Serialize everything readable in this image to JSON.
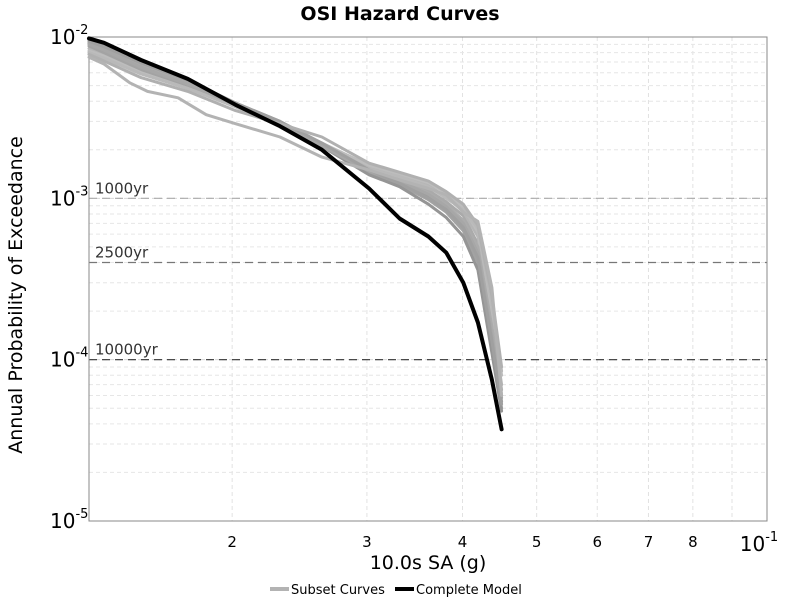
{
  "chart_data": {
    "type": "line",
    "title": "OSI Hazard Curves",
    "xlabel": "10.0s SA (g)",
    "ylabel": "Annual Probability of Exceedance",
    "x_scale": "log",
    "y_scale": "log",
    "xlim": [
      0.013,
      0.1
    ],
    "ylim": [
      1e-05,
      0.01
    ],
    "grid": true,
    "x_tick_labels": [
      {
        "value": 0.02,
        "label": "2"
      },
      {
        "value": 0.03,
        "label": "3"
      },
      {
        "value": 0.04,
        "label": "4"
      },
      {
        "value": 0.05,
        "label": "5"
      },
      {
        "value": 0.06,
        "label": "6"
      },
      {
        "value": 0.07,
        "label": "7"
      },
      {
        "value": 0.08,
        "label": "8"
      },
      {
        "value": 0.1,
        "label": "10",
        "superscript": "-1"
      }
    ],
    "y_tick_labels": [
      {
        "value": 0.01,
        "label": "10",
        "superscript": "-2"
      },
      {
        "value": 0.001,
        "label": "10",
        "superscript": "-3"
      },
      {
        "value": 0.0001,
        "label": "10",
        "superscript": "-4"
      },
      {
        "value": 1e-05,
        "label": "10",
        "superscript": "-5"
      }
    ],
    "reference_lines": [
      {
        "label": "1000yr",
        "y": 0.001,
        "color": "#aaaaaa"
      },
      {
        "label": "2500yr",
        "y": 0.0004,
        "color": "#777777"
      },
      {
        "label": "10000yr",
        "y": 0.0001,
        "color": "#333333"
      }
    ],
    "legend": {
      "placement": "bottom",
      "entries": [
        {
          "label": "Subset Curves",
          "color": "#b3b3b3"
        },
        {
          "label": "Complete Model",
          "color": "#000000"
        }
      ]
    },
    "series": [
      {
        "group": "Subset Curves",
        "color": "#aaaaaa",
        "x": [
          0.013,
          0.0136,
          0.0152,
          0.0175,
          0.0202,
          0.0231,
          0.0262,
          0.0302,
          0.0331,
          0.0361,
          0.0381,
          0.0401,
          0.0419,
          0.0437,
          0.045
        ],
        "y": [
          0.0092,
          0.0083,
          0.0065,
          0.0051,
          0.0038,
          0.0029,
          0.0021,
          0.0015,
          0.00132,
          0.00112,
          0.00095,
          0.00078,
          0.00052,
          0.00015,
          6e-05
        ]
      },
      {
        "group": "Subset Curves",
        "color": "#b5b5b5",
        "x": [
          0.013,
          0.0136,
          0.0152,
          0.0175,
          0.0202,
          0.0231,
          0.0262,
          0.0302,
          0.0331,
          0.0361,
          0.0381,
          0.0401,
          0.0419,
          0.0437,
          0.045
        ],
        "y": [
          0.0085,
          0.0078,
          0.0061,
          0.0049,
          0.0037,
          0.0029,
          0.0022,
          0.00155,
          0.00138,
          0.0012,
          0.00102,
          0.00083,
          0.00058,
          0.00018,
          7e-05
        ]
      },
      {
        "group": "Subset Curves",
        "color": "#9c9c9c",
        "x": [
          0.013,
          0.0136,
          0.0152,
          0.0175,
          0.0202,
          0.0231,
          0.0262,
          0.0302,
          0.0331,
          0.0361,
          0.0381,
          0.0401,
          0.0419,
          0.0437,
          0.045
        ],
        "y": [
          0.0095,
          0.0087,
          0.0069,
          0.0054,
          0.0039,
          0.003,
          0.00215,
          0.00148,
          0.00126,
          0.00104,
          0.00088,
          0.00069,
          0.00045,
          0.00013,
          5.5e-05
        ]
      },
      {
        "group": "Subset Curves",
        "color": "#a3a3a3",
        "x": [
          0.013,
          0.0136,
          0.0152,
          0.0175,
          0.0202,
          0.0231,
          0.0262,
          0.0302,
          0.0331,
          0.0361,
          0.0381,
          0.0401,
          0.0419,
          0.0437,
          0.045
        ],
        "y": [
          0.0088,
          0.008,
          0.0063,
          0.005,
          0.0038,
          0.0029,
          0.0021,
          0.00145,
          0.00122,
          0.00098,
          0.00082,
          0.00063,
          0.0004,
          0.00012,
          5e-05
        ]
      },
      {
        "group": "Subset Curves",
        "color": "#bdbdbd",
        "x": [
          0.013,
          0.0136,
          0.0152,
          0.0175,
          0.0202,
          0.0231,
          0.0262,
          0.0302,
          0.0331,
          0.0361,
          0.0381,
          0.0401,
          0.0419,
          0.0437,
          0.045
        ],
        "y": [
          0.0082,
          0.0076,
          0.006,
          0.0048,
          0.0037,
          0.0029,
          0.0022,
          0.0016,
          0.00142,
          0.00125,
          0.00108,
          0.00088,
          0.00062,
          0.0002,
          8e-05
        ]
      },
      {
        "group": "Subset Curves",
        "color": "#959595",
        "x": [
          0.013,
          0.0136,
          0.0152,
          0.0175,
          0.0202,
          0.0231,
          0.0262,
          0.0302,
          0.0331,
          0.0361,
          0.0381,
          0.0401,
          0.0419,
          0.0437,
          0.045
        ],
        "y": [
          0.0091,
          0.0084,
          0.0066,
          0.0052,
          0.0038,
          0.0029,
          0.0021,
          0.0014,
          0.00118,
          0.00092,
          0.00076,
          0.00058,
          0.00036,
          0.00011,
          4.8e-05
        ]
      },
      {
        "group": "Subset Curves",
        "color": "#acacac",
        "x": [
          0.013,
          0.0136,
          0.0152,
          0.0175,
          0.0202,
          0.0231,
          0.0262,
          0.0302,
          0.0331,
          0.0361,
          0.0381,
          0.0401,
          0.0419,
          0.0437,
          0.045
        ],
        "y": [
          0.0093,
          0.0086,
          0.0068,
          0.0053,
          0.0039,
          0.003,
          0.00215,
          0.00152,
          0.00132,
          0.00108,
          0.00091,
          0.00073,
          0.0005,
          0.00016,
          6.5e-05
        ]
      },
      {
        "group": "Subset Curves",
        "color": "#b9b9b9",
        "x": [
          0.013,
          0.0136,
          0.0152,
          0.0175,
          0.0202,
          0.0231,
          0.0262,
          0.0302,
          0.0331,
          0.0361,
          0.0381,
          0.0401,
          0.0419,
          0.0437,
          0.045
        ],
        "y": [
          0.008,
          0.0074,
          0.0059,
          0.0048,
          0.0037,
          0.0028,
          0.0021,
          0.00152,
          0.00136,
          0.00118,
          0.001,
          0.00085,
          0.00065,
          0.00022,
          8.5e-05
        ]
      },
      {
        "group": "Subset Curves",
        "color": "#a7a7a7",
        "x": [
          0.013,
          0.0136,
          0.0152,
          0.0175,
          0.0202,
          0.0231,
          0.0262,
          0.0302,
          0.0331,
          0.0361,
          0.0381,
          0.0401,
          0.0419,
          0.0437,
          0.045
        ],
        "y": [
          0.009,
          0.0083,
          0.0065,
          0.0051,
          0.0038,
          0.0029,
          0.0021,
          0.00147,
          0.00128,
          0.00106,
          0.00089,
          0.0007,
          0.00046,
          0.00014,
          5.8e-05
        ]
      },
      {
        "group": "Subset Curves",
        "color": "#a0a0a0",
        "x": [
          0.013,
          0.0136,
          0.0152,
          0.0175,
          0.0202,
          0.0231,
          0.0262,
          0.0302,
          0.0331,
          0.0361,
          0.0381,
          0.0401,
          0.0419,
          0.0437,
          0.045
        ],
        "y": [
          0.0094,
          0.0087,
          0.0069,
          0.0054,
          0.0039,
          0.003,
          0.0022,
          0.0015,
          0.00124,
          0.001,
          0.00085,
          0.00066,
          0.00043,
          0.00013,
          5.3e-05
        ]
      },
      {
        "group": "Subset Curves",
        "color": "#b0b0b0",
        "x": [
          0.013,
          0.0136,
          0.0152,
          0.0175,
          0.0202,
          0.0231,
          0.0262,
          0.0302,
          0.0331,
          0.0361,
          0.0381,
          0.0401,
          0.0419,
          0.0437,
          0.045
        ],
        "y": [
          0.0078,
          0.0071,
          0.0056,
          0.0046,
          0.0035,
          0.0029,
          0.0024,
          0.00165,
          0.00145,
          0.00128,
          0.0011,
          0.00092,
          0.00068,
          0.00025,
          9e-05
        ]
      },
      {
        "group": "Subset Curves",
        "color": "#b3b3b3",
        "x": [
          0.013,
          0.0136,
          0.0147,
          0.0155,
          0.017,
          0.0185,
          0.0202,
          0.0231,
          0.0262,
          0.0302,
          0.0331,
          0.0361,
          0.0381,
          0.0401,
          0.0419,
          0.0437,
          0.045
        ],
        "y": [
          0.0075,
          0.0068,
          0.0052,
          0.0046,
          0.0042,
          0.0033,
          0.0029,
          0.0024,
          0.0018,
          0.0015,
          0.0013,
          0.00115,
          0.00105,
          0.00082,
          0.00072,
          0.00028,
          6e-05
        ]
      },
      {
        "group": "Complete Model",
        "color": "#000000",
        "x": [
          0.013,
          0.0136,
          0.0152,
          0.0175,
          0.0202,
          0.0231,
          0.0262,
          0.0302,
          0.0331,
          0.0361,
          0.0381,
          0.0401,
          0.0419,
          0.0437,
          0.045
        ],
        "y": [
          0.0098,
          0.0092,
          0.0072,
          0.0055,
          0.0038,
          0.0028,
          0.002,
          0.00115,
          0.00075,
          0.00058,
          0.00046,
          0.0003,
          0.00017,
          7.5e-05,
          3.7e-05
        ]
      }
    ]
  }
}
